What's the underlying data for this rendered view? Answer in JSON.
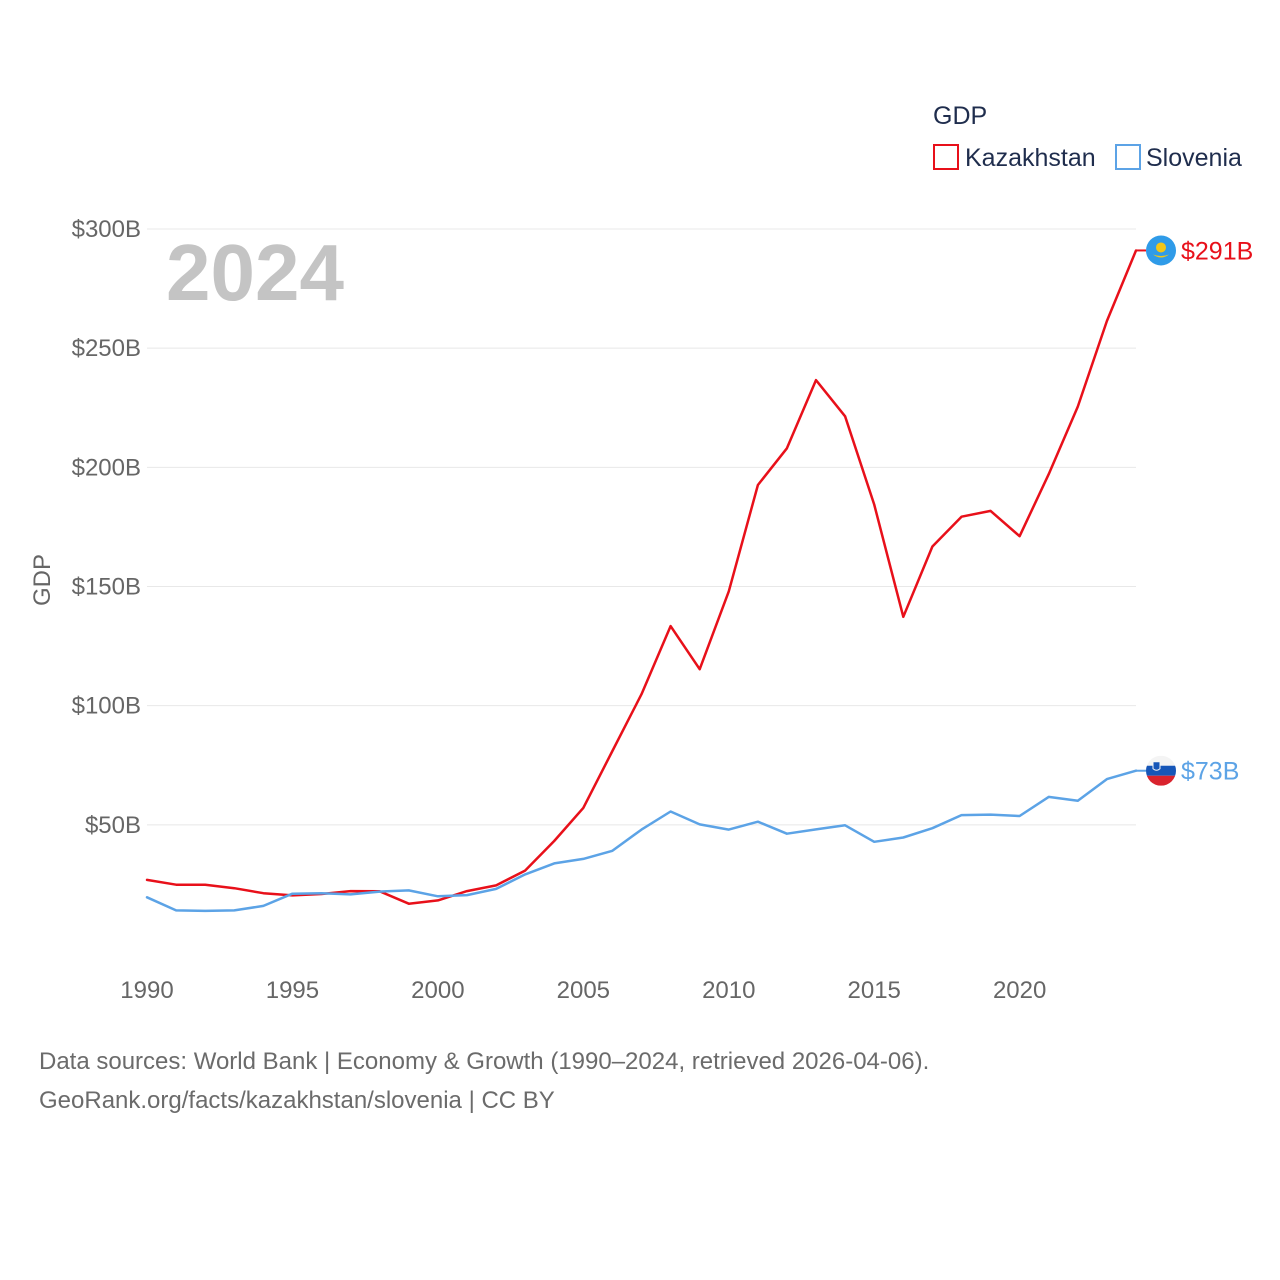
{
  "chart_data": {
    "type": "line",
    "title": "GDP",
    "legend_title": "GDP",
    "ylabel": "GDP",
    "xlabel": "",
    "watermark_year": "2024",
    "x": [
      1990,
      1991,
      1992,
      1993,
      1994,
      1995,
      1996,
      1997,
      1998,
      1999,
      2000,
      2001,
      2002,
      2003,
      2004,
      2005,
      2006,
      2007,
      2008,
      2009,
      2010,
      2011,
      2012,
      2013,
      2014,
      2015,
      2016,
      2017,
      2018,
      2019,
      2020,
      2021,
      2022,
      2023,
      2024
    ],
    "xlim": [
      1990,
      2024
    ],
    "ylim": [
      0,
      300
    ],
    "x_ticks": [
      1990,
      1995,
      2000,
      2005,
      2010,
      2015,
      2020
    ],
    "x_tick_labels": [
      "1990",
      "1995",
      "2000",
      "2005",
      "2010",
      "2015",
      "2020"
    ],
    "y_ticks": [
      50,
      100,
      150,
      200,
      250,
      300
    ],
    "y_tick_labels": [
      "$50B",
      "$100B",
      "$150B",
      "$200B",
      "$250B",
      "$300B"
    ],
    "grid": true,
    "legend_position": "top-right",
    "series": [
      {
        "name": "Kazakhstan",
        "color": "#e8101a",
        "end_label": "$291B",
        "flag": "kazakhstan-flag",
        "values": [
          26.9,
          24.9,
          24.9,
          23.4,
          21.3,
          20.4,
          21.0,
          22.2,
          22.1,
          16.9,
          18.3,
          22.2,
          24.6,
          30.8,
          43.2,
          57.1,
          81.0,
          104.8,
          133.4,
          115.3,
          148.0,
          192.6,
          208.0,
          236.6,
          221.4,
          184.4,
          137.3,
          166.8,
          179.3,
          181.7,
          171.1,
          197.1,
          225.5,
          261.4,
          291.0
        ]
      },
      {
        "name": "Slovenia",
        "color": "#5ca3e6",
        "end_label": "$73B",
        "flag": "slovenia-flag",
        "values": [
          19.6,
          14.1,
          13.9,
          14.1,
          16.0,
          21.1,
          21.3,
          20.8,
          22.0,
          22.5,
          20.0,
          20.5,
          23.1,
          29.2,
          33.8,
          35.7,
          39.1,
          48.0,
          55.6,
          50.2,
          48.0,
          51.3,
          46.3,
          48.1,
          49.8,
          42.9,
          44.7,
          48.6,
          54.1,
          54.3,
          53.7,
          61.7,
          60.1,
          69.2,
          72.7
        ]
      }
    ]
  },
  "footer": {
    "line1": "Data sources: World Bank | Economy & Growth (1990–2024, retrieved 2026-04-06).",
    "line2": "GeoRank.org/facts/kazakhstan/slovenia | CC BY"
  }
}
